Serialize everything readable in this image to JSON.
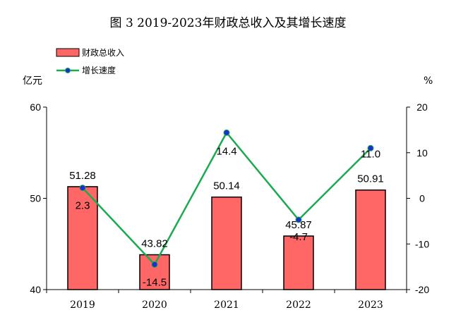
{
  "chart_data": {
    "type": "bar+line",
    "title": "图 3 2019-2023年财政总收入及其增长速度",
    "categories": [
      "2019",
      "2020",
      "2021",
      "2022",
      "2023"
    ],
    "bars": {
      "name": "财政总收入",
      "values": [
        51.28,
        43.82,
        50.14,
        45.87,
        50.91
      ],
      "labels": [
        "51.28",
        "43.82",
        "50.14",
        "45.87",
        "50.91"
      ],
      "axis_unit": "亿元",
      "ylim": [
        40,
        60
      ],
      "ticks": [
        "40",
        "50",
        "60"
      ],
      "color": "#ff6666"
    },
    "line": {
      "name": "增长速度",
      "values": [
        2.3,
        -14.5,
        14.4,
        -4.7,
        11.0
      ],
      "labels": [
        "2.3",
        "-14.5",
        "14.4",
        "-4.7",
        "11.0"
      ],
      "axis_unit": "%",
      "ylim": [
        -20,
        20
      ],
      "ticks": [
        "-20",
        "-10",
        "0",
        "10",
        "20"
      ],
      "color": "#1aaa50",
      "marker_color": "#1a2fd0"
    },
    "legend_position": "top-left",
    "grid": false
  }
}
